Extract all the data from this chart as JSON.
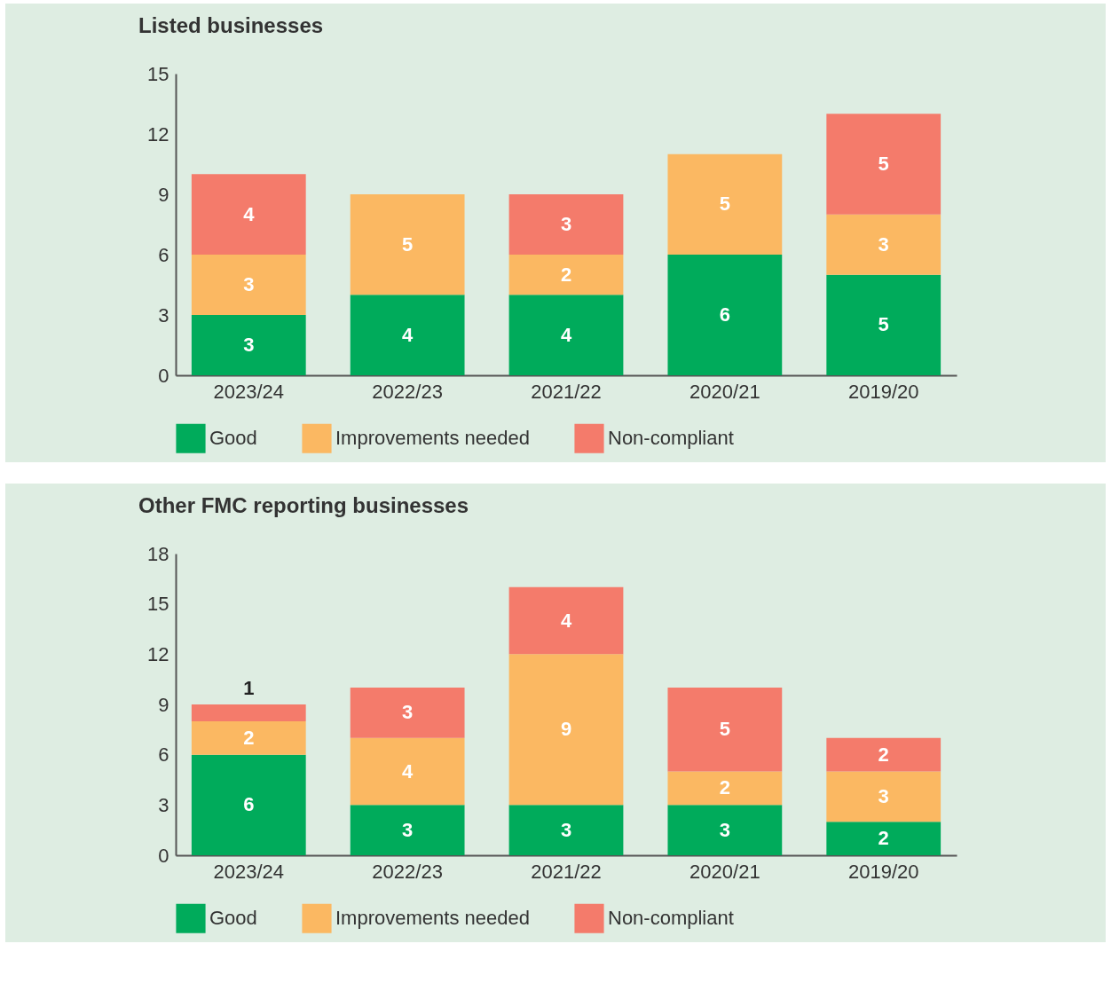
{
  "chart_data": [
    {
      "type": "bar",
      "title": "Listed businesses",
      "categories": [
        "2023/24",
        "2022/23",
        "2021/22",
        "2020/21",
        "2019/20"
      ],
      "stacked": true,
      "data_labels": true,
      "legend": "bottom",
      "ylim": [
        0,
        15
      ],
      "yticks": [
        0,
        3,
        6,
        9,
        12,
        15
      ],
      "series": [
        {
          "name": "Good",
          "color": "#00ab5b",
          "values": [
            3,
            4,
            4,
            6,
            5
          ]
        },
        {
          "name": "Improvements needed",
          "color": "#fbb862",
          "values": [
            3,
            5,
            2,
            5,
            3
          ]
        },
        {
          "name": "Non-compliant",
          "color": "#f47b6b",
          "values": [
            4,
            null,
            3,
            null,
            5
          ]
        }
      ]
    },
    {
      "type": "bar",
      "title": "Other FMC reporting businesses",
      "categories": [
        "2023/24",
        "2022/23",
        "2021/22",
        "2020/21",
        "2019/20"
      ],
      "stacked": true,
      "data_labels": true,
      "legend": "bottom",
      "ylim": [
        0,
        18
      ],
      "yticks": [
        0,
        3,
        6,
        9,
        12,
        15,
        18
      ],
      "series": [
        {
          "name": "Good",
          "color": "#00ab5b",
          "values": [
            6,
            3,
            3,
            3,
            2
          ]
        },
        {
          "name": "Improvements needed",
          "color": "#fbb862",
          "values": [
            2,
            4,
            9,
            2,
            3
          ]
        },
        {
          "name": "Non-compliant",
          "color": "#f47b6b",
          "values": [
            1,
            3,
            4,
            5,
            2
          ]
        }
      ]
    }
  ]
}
